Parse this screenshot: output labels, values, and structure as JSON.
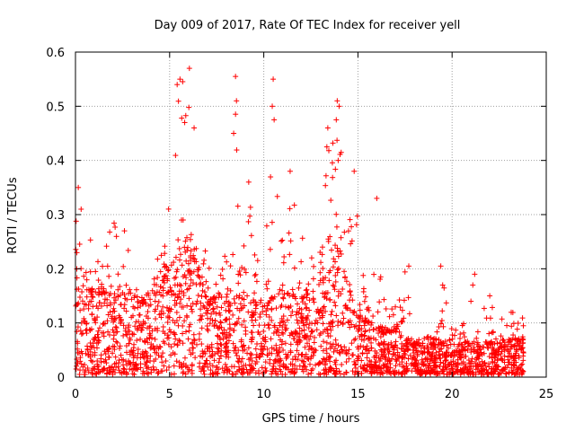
{
  "chart_data": {
    "type": "scatter",
    "title": "Day 009 of 2017, Rate Of TEC Index for receiver yell",
    "xlabel": "GPS time / hours",
    "ylabel": "ROTI / TECUs",
    "xlim": [
      0,
      25
    ],
    "ylim": [
      0,
      0.6
    ],
    "xticks": [
      0,
      5,
      10,
      15,
      20,
      25
    ],
    "yticks": [
      0,
      0.1,
      0.2,
      0.3,
      0.4,
      0.5,
      0.6
    ],
    "xtick_labels": [
      "0",
      "5",
      "10",
      "15",
      "20",
      "25"
    ],
    "ytick_labels": [
      "0",
      "0.1",
      "0.2",
      "0.3",
      "0.4",
      "0.5",
      "0.6"
    ],
    "grid": true,
    "marker": "+",
    "color": "#ff0000",
    "x_data_range": [
      0,
      23.8
    ],
    "envelope": [
      {
        "x": 0.0,
        "y": 0.35
      },
      {
        "x": 0.5,
        "y": 0.24
      },
      {
        "x": 1.0,
        "y": 0.3
      },
      {
        "x": 1.5,
        "y": 0.22
      },
      {
        "x": 2.0,
        "y": 0.3
      },
      {
        "x": 2.5,
        "y": 0.28
      },
      {
        "x": 3.0,
        "y": 0.3
      },
      {
        "x": 3.5,
        "y": 0.17
      },
      {
        "x": 4.0,
        "y": 0.17
      },
      {
        "x": 4.5,
        "y": 0.24
      },
      {
        "x": 5.0,
        "y": 0.33
      },
      {
        "x": 5.5,
        "y": 0.55
      },
      {
        "x": 6.0,
        "y": 0.57
      },
      {
        "x": 6.5,
        "y": 0.29
      },
      {
        "x": 7.0,
        "y": 0.22
      },
      {
        "x": 7.5,
        "y": 0.2
      },
      {
        "x": 8.0,
        "y": 0.27
      },
      {
        "x": 8.5,
        "y": 0.56
      },
      {
        "x": 9.0,
        "y": 0.36
      },
      {
        "x": 9.5,
        "y": 0.3
      },
      {
        "x": 10.0,
        "y": 0.25
      },
      {
        "x": 10.5,
        "y": 0.55
      },
      {
        "x": 11.0,
        "y": 0.27
      },
      {
        "x": 11.5,
        "y": 0.38
      },
      {
        "x": 12.0,
        "y": 0.29
      },
      {
        "x": 12.5,
        "y": 0.24
      },
      {
        "x": 13.0,
        "y": 0.27
      },
      {
        "x": 13.5,
        "y": 0.48
      },
      {
        "x": 14.0,
        "y": 0.51
      },
      {
        "x": 14.5,
        "y": 0.29
      },
      {
        "x": 15.0,
        "y": 0.38
      },
      {
        "x": 15.5,
        "y": 0.14
      },
      {
        "x": 16.0,
        "y": 0.33
      },
      {
        "x": 16.5,
        "y": 0.13
      },
      {
        "x": 17.0,
        "y": 0.13
      },
      {
        "x": 17.5,
        "y": 0.2
      },
      {
        "x": 18.0,
        "y": 0.09
      },
      {
        "x": 18.5,
        "y": 0.08
      },
      {
        "x": 19.0,
        "y": 0.08
      },
      {
        "x": 19.5,
        "y": 0.2
      },
      {
        "x": 20.0,
        "y": 0.09
      },
      {
        "x": 20.5,
        "y": 0.09
      },
      {
        "x": 21.0,
        "y": 0.19
      },
      {
        "x": 21.5,
        "y": 0.12
      },
      {
        "x": 22.0,
        "y": 0.15
      },
      {
        "x": 22.5,
        "y": 0.13
      },
      {
        "x": 23.0,
        "y": 0.13
      },
      {
        "x": 23.5,
        "y": 0.11
      }
    ],
    "typical_upper": [
      {
        "x": 0.0,
        "y": 0.16
      },
      {
        "x": 2.0,
        "y": 0.15
      },
      {
        "x": 4.0,
        "y": 0.13
      },
      {
        "x": 5.0,
        "y": 0.2
      },
      {
        "x": 6.0,
        "y": 0.25
      },
      {
        "x": 7.0,
        "y": 0.14
      },
      {
        "x": 8.0,
        "y": 0.16
      },
      {
        "x": 9.0,
        "y": 0.14
      },
      {
        "x": 10.0,
        "y": 0.13
      },
      {
        "x": 11.0,
        "y": 0.16
      },
      {
        "x": 12.0,
        "y": 0.14
      },
      {
        "x": 13.0,
        "y": 0.17
      },
      {
        "x": 14.0,
        "y": 0.22
      },
      {
        "x": 15.0,
        "y": 0.11
      },
      {
        "x": 16.0,
        "y": 0.09
      },
      {
        "x": 17.0,
        "y": 0.08
      },
      {
        "x": 18.0,
        "y": 0.06
      },
      {
        "x": 20.0,
        "y": 0.06
      },
      {
        "x": 22.0,
        "y": 0.06
      },
      {
        "x": 23.8,
        "y": 0.07
      }
    ],
    "outliers": [
      {
        "x": 0.15,
        "y": 0.35
      },
      {
        "x": 0.3,
        "y": 0.31
      },
      {
        "x": 2.6,
        "y": 0.27
      },
      {
        "x": 5.4,
        "y": 0.54
      },
      {
        "x": 5.55,
        "y": 0.55
      },
      {
        "x": 5.8,
        "y": 0.47
      },
      {
        "x": 6.05,
        "y": 0.57
      },
      {
        "x": 6.3,
        "y": 0.46
      },
      {
        "x": 8.5,
        "y": 0.555
      },
      {
        "x": 8.55,
        "y": 0.51
      },
      {
        "x": 8.4,
        "y": 0.45
      },
      {
        "x": 9.2,
        "y": 0.36
      },
      {
        "x": 10.5,
        "y": 0.55
      },
      {
        "x": 10.45,
        "y": 0.5
      },
      {
        "x": 10.55,
        "y": 0.475
      },
      {
        "x": 11.4,
        "y": 0.38
      },
      {
        "x": 13.4,
        "y": 0.46
      },
      {
        "x": 13.35,
        "y": 0.425
      },
      {
        "x": 13.9,
        "y": 0.51
      },
      {
        "x": 14.0,
        "y": 0.5
      },
      {
        "x": 13.85,
        "y": 0.475
      },
      {
        "x": 13.95,
        "y": 0.4
      },
      {
        "x": 14.8,
        "y": 0.38
      },
      {
        "x": 16.0,
        "y": 0.33
      },
      {
        "x": 17.7,
        "y": 0.205
      },
      {
        "x": 19.4,
        "y": 0.205
      },
      {
        "x": 19.5,
        "y": 0.17
      },
      {
        "x": 21.2,
        "y": 0.19
      },
      {
        "x": 21.1,
        "y": 0.17
      },
      {
        "x": 22.0,
        "y": 0.15
      },
      {
        "x": 21.0,
        "y": 0.14
      }
    ]
  }
}
